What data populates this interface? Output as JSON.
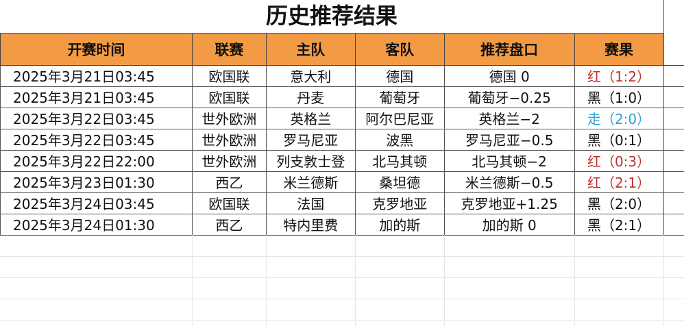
{
  "title": "历史推荐结果",
  "headers": [
    "开赛时间",
    "联赛",
    "主队",
    "客队",
    "推荐盘口",
    "赛果"
  ],
  "colors": {
    "header_bg": "#f39a45",
    "red": "#c0302a",
    "blue": "#2aa0d8",
    "black": "#111111"
  },
  "rows": [
    {
      "time": "2025年3月21日03:45",
      "league": "欧国联",
      "home": "意大利",
      "away": "德国",
      "pick": "德国 0",
      "result": "红（1:2）",
      "status": "red"
    },
    {
      "time": "2025年3月21日03:45",
      "league": "欧国联",
      "home": "丹麦",
      "away": "葡萄牙",
      "pick": "葡萄牙−0.25",
      "result": "黑（1:0）",
      "status": "black"
    },
    {
      "time": "2025年3月22日03:45",
      "league": "世外欧洲",
      "home": "英格兰",
      "away": "阿尔巴尼亚",
      "pick": "英格兰−2",
      "result": "走（2:0）",
      "status": "blue"
    },
    {
      "time": "2025年3月22日03:45",
      "league": "世外欧洲",
      "home": "罗马尼亚",
      "away": "波黑",
      "pick": "罗马尼亚−0.5",
      "result": "黑（0:1）",
      "status": "black"
    },
    {
      "time": "2025年3月22日22:00",
      "league": "世外欧洲",
      "home": "列支敦士登",
      "away": "北马其顿",
      "pick": "北马其顿−2",
      "result": "红（0:3）",
      "status": "red"
    },
    {
      "time": "2025年3月23日01:30",
      "league": "西乙",
      "home": "米兰德斯",
      "away": "桑坦德",
      "pick": "米兰德斯−0.5",
      "result": "红（2:1）",
      "status": "red"
    },
    {
      "time": "2025年3月24日03:45",
      "league": "欧国联",
      "home": "法国",
      "away": "克罗地亚",
      "pick": "克罗地亚+1.25",
      "result": "黑（2:0）",
      "status": "black"
    },
    {
      "time": "2025年3月24日01:30",
      "league": "西乙",
      "home": "特内里费",
      "away": "加的斯",
      "pick": "加的斯 0",
      "result": "黑（2:1）",
      "status": "black"
    }
  ]
}
